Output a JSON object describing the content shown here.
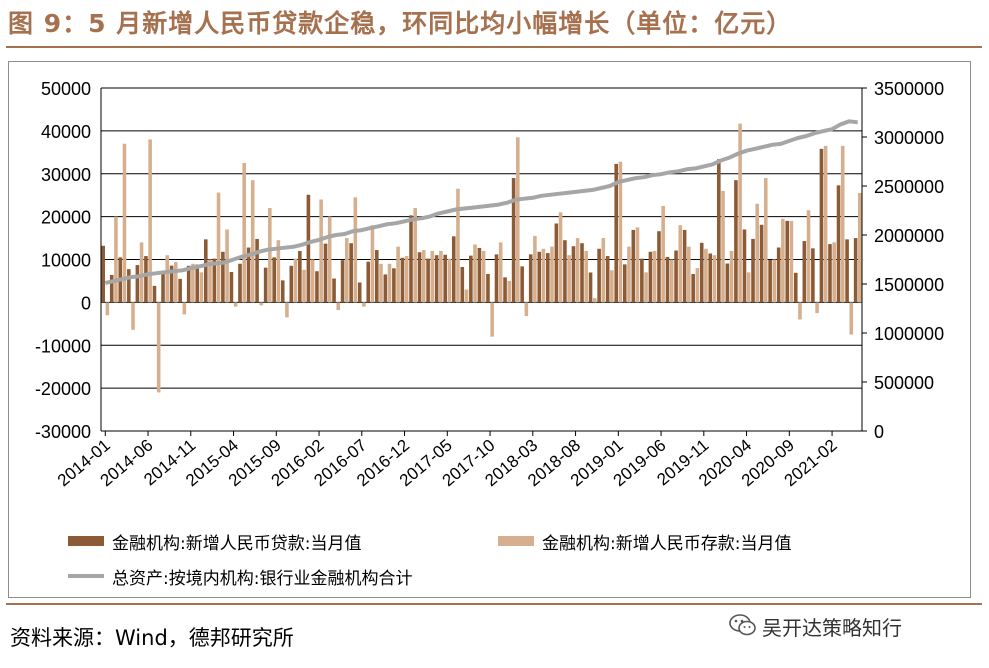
{
  "title": "图 9：5 月新增人民币贷款企稳，环同比均小幅增长（单位：亿元）",
  "source": "资料来源：Wind，德邦研究所",
  "watermark": "吴开达策略知行",
  "watermark_icon": "wechat-icon",
  "colors": {
    "brand": "#a6714f",
    "loans": "#8c5a35",
    "deposits": "#d6b08e",
    "assets": "#a6a6a6",
    "grid": "#000000"
  },
  "chart_data": {
    "type": "bar",
    "legend": [
      {
        "name": "金融机构:新增人民币贷款:当月值",
        "kind": "bar"
      },
      {
        "name": "金融机构:新增人民币存款:当月值",
        "kind": "bar"
      },
      {
        "name": "总资产:按境内机构:银行业金融机构合计",
        "kind": "line"
      }
    ],
    "legend_position": "bottom",
    "grid": true,
    "y_left": {
      "min": -30000,
      "max": 50000,
      "ticks": [
        "50000",
        "40000",
        "30000",
        "20000",
        "10000",
        "0",
        "-10000",
        "-20000",
        "-30000"
      ]
    },
    "y_right": {
      "min": 0,
      "max": 3500000,
      "ticks": [
        "3500000",
        "3000000",
        "2500000",
        "2000000",
        "1500000",
        "1000000",
        "500000",
        "0"
      ]
    },
    "x_tick_labels": [
      "2014-01",
      "2014-06",
      "2014-11",
      "2015-04",
      "2015-09",
      "2016-02",
      "2016-07",
      "2016-12",
      "2017-05",
      "2017-10",
      "2018-03",
      "2018-08",
      "2019-01",
      "2019-06",
      "2019-11",
      "2020-04",
      "2020-09",
      "2021-02"
    ],
    "start": "2014-01",
    "end": "2021-05",
    "series": [
      {
        "name": "金融机构:新增人民币贷款:当月值",
        "axis": "left",
        "values": [
          13200,
          6400,
          10500,
          7750,
          8700,
          10800,
          3850,
          7025,
          8572,
          5483,
          8527,
          8825,
          14700,
          10200,
          11800,
          7079,
          9008,
          12790,
          14800,
          8096,
          10500,
          5136,
          8536,
          11978,
          25100,
          7266,
          13700,
          5556,
          9855,
          13800,
          4636,
          9487,
          12200,
          6513,
          7946,
          10400,
          20300,
          11700,
          10200,
          11000,
          11100,
          15400,
          8255,
          10900,
          12700,
          6632,
          11200,
          5844,
          29000,
          8393,
          11200,
          11800,
          11500,
          18400,
          14500,
          13100,
          13800,
          6970,
          12500,
          10800,
          32300,
          8858,
          16900,
          10200,
          11800,
          16600,
          10600,
          12100,
          16900,
          6613,
          13900,
          11400,
          33400,
          9057,
          28500,
          17000,
          14800,
          18100,
          9927,
          12800,
          19000,
          6898,
          14300,
          12600,
          35800,
          13600,
          27300,
          14700,
          15000
        ]
      },
      {
        "name": "金融机构:新增人民币存款:当月值",
        "axis": "left",
        "values": [
          -3000,
          20000,
          37000,
          -6400,
          14000,
          38000,
          -21000,
          11000,
          9400,
          -2800,
          9000,
          7000,
          10000,
          25600,
          17000,
          -1000,
          32500,
          28500,
          -700,
          22000,
          14500,
          -3500,
          10200,
          7600,
          10000,
          24000,
          20000,
          -1800,
          15000,
          24500,
          -1000,
          18000,
          9000,
          9000,
          13000,
          10800,
          22000,
          12200,
          12000,
          12000,
          10200,
          26500,
          3000,
          13500,
          12000,
          -8000,
          14000,
          5000,
          38500,
          -3200,
          15500,
          12500,
          13000,
          21000,
          11000,
          15000,
          12000,
          1000,
          15000,
          7500,
          32800,
          13000,
          17500,
          7000,
          12000,
          22500,
          10000,
          18000,
          13000,
          8000,
          12500,
          11000,
          26000,
          12000,
          41700,
          7000,
          23000,
          29000,
          10000,
          19500,
          19000,
          -4000,
          21500,
          -2500,
          36500,
          14000,
          36500,
          -7500,
          25500
        ]
      },
      {
        "name": "总资产:按境内机构:银行业金融机构合计",
        "axis": "right",
        "values": [
          1510000,
          1530000,
          1550000,
          1570000,
          1580000,
          1600000,
          1610000,
          1620000,
          1630000,
          1640000,
          1660000,
          1680000,
          1700000,
          1710000,
          1720000,
          1750000,
          1780000,
          1800000,
          1830000,
          1850000,
          1860000,
          1870000,
          1880000,
          1900000,
          1930000,
          1950000,
          1980000,
          2000000,
          2010000,
          2040000,
          2050000,
          2070000,
          2090000,
          2110000,
          2120000,
          2140000,
          2160000,
          2170000,
          2190000,
          2220000,
          2240000,
          2260000,
          2270000,
          2280000,
          2290000,
          2300000,
          2310000,
          2330000,
          2360000,
          2370000,
          2380000,
          2400000,
          2410000,
          2420000,
          2430000,
          2440000,
          2450000,
          2460000,
          2480000,
          2500000,
          2540000,
          2560000,
          2580000,
          2590000,
          2610000,
          2620000,
          2640000,
          2650000,
          2670000,
          2680000,
          2700000,
          2720000,
          2760000,
          2790000,
          2830000,
          2860000,
          2880000,
          2900000,
          2920000,
          2930000,
          2960000,
          2990000,
          3010000,
          3040000,
          3060000,
          3080000,
          3130000,
          3160000,
          3150000
        ]
      }
    ]
  }
}
